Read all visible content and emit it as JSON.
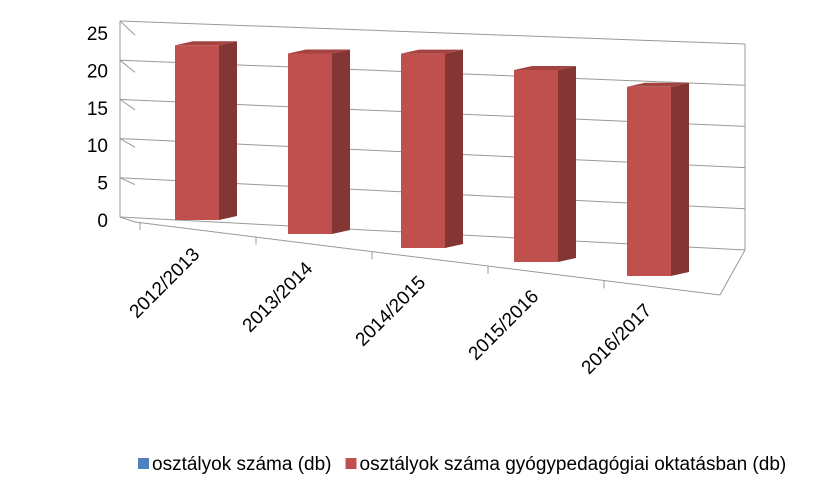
{
  "chart_data": {
    "type": "bar3d",
    "categories": [
      "2012/2013",
      "2013/2014",
      "2014/2015",
      "2015/2016",
      "2016/2017"
    ],
    "series": [
      {
        "name": "osztályok száma (db)",
        "color": "#4f81bd",
        "values": [
          null,
          null,
          null,
          null,
          null
        ]
      },
      {
        "name": "osztályok száma gyógypedagógiai oktatásban (db)",
        "color": "#c0504d",
        "values": [
          23,
          23,
          24,
          23,
          22
        ]
      }
    ],
    "ylim": [
      0,
      25
    ],
    "yticks": [
      0,
      5,
      10,
      15,
      20,
      25
    ],
    "grid": true,
    "legend": "bottom"
  }
}
